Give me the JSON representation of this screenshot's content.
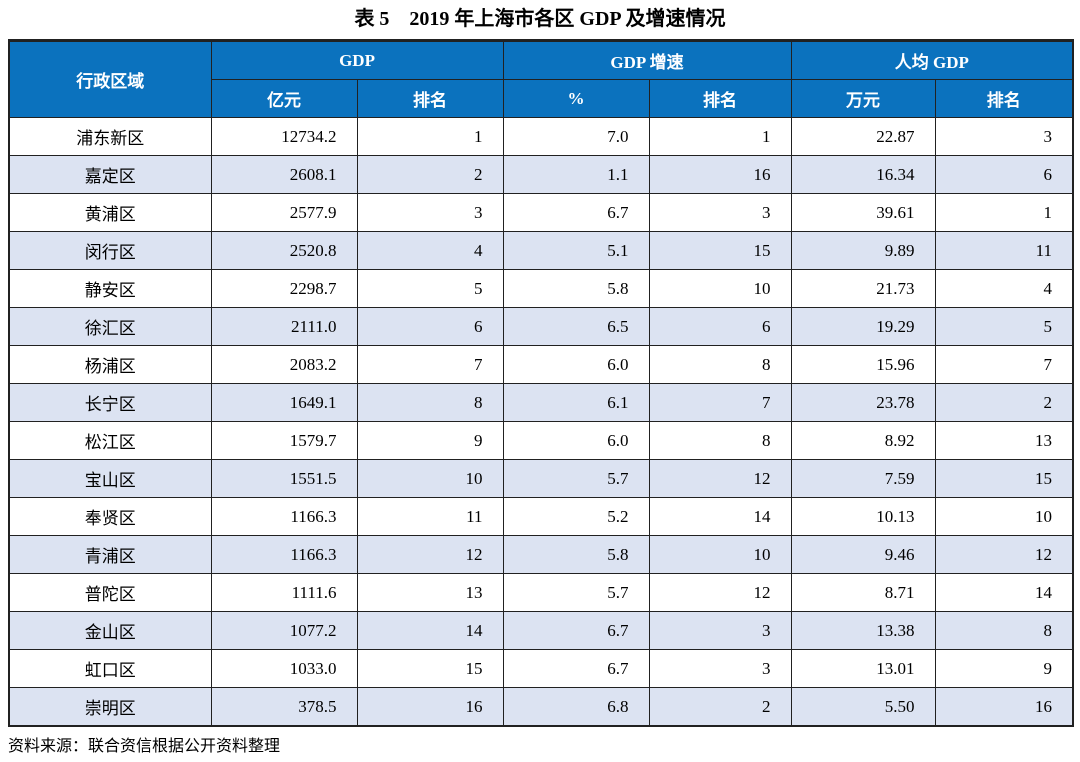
{
  "page": {
    "title": "表 5　2019 年上海市各区 GDP 及增速情况",
    "source_note": "资料来源：联合资信根据公开资料整理"
  },
  "colors": {
    "header_bg": "#0b72be",
    "header_text": "#ffffff",
    "alt_row_bg": "#dce3f2",
    "border": "#212121"
  },
  "table": {
    "header": {
      "region": "行政区域",
      "groups": [
        {
          "label": "GDP",
          "subs": [
            "亿元",
            "排名"
          ]
        },
        {
          "label": "GDP 增速",
          "subs": [
            "%",
            "排名"
          ]
        },
        {
          "label": "人均 GDP",
          "subs": [
            "万元",
            "排名"
          ]
        }
      ]
    },
    "rows": [
      [
        "浦东新区",
        "12734.2",
        "1",
        "7.0",
        "1",
        "22.87",
        "3"
      ],
      [
        "嘉定区",
        "2608.1",
        "2",
        "1.1",
        "16",
        "16.34",
        "6"
      ],
      [
        "黄浦区",
        "2577.9",
        "3",
        "6.7",
        "3",
        "39.61",
        "1"
      ],
      [
        "闵行区",
        "2520.8",
        "4",
        "5.1",
        "15",
        "9.89",
        "11"
      ],
      [
        "静安区",
        "2298.7",
        "5",
        "5.8",
        "10",
        "21.73",
        "4"
      ],
      [
        "徐汇区",
        "2111.0",
        "6",
        "6.5",
        "6",
        "19.29",
        "5"
      ],
      [
        "杨浦区",
        "2083.2",
        "7",
        "6.0",
        "8",
        "15.96",
        "7"
      ],
      [
        "长宁区",
        "1649.1",
        "8",
        "6.1",
        "7",
        "23.78",
        "2"
      ],
      [
        "松江区",
        "1579.7",
        "9",
        "6.0",
        "8",
        "8.92",
        "13"
      ],
      [
        "宝山区",
        "1551.5",
        "10",
        "5.7",
        "12",
        "7.59",
        "15"
      ],
      [
        "奉贤区",
        "1166.3",
        "11",
        "5.2",
        "14",
        "10.13",
        "10"
      ],
      [
        "青浦区",
        "1166.3",
        "12",
        "5.8",
        "10",
        "9.46",
        "12"
      ],
      [
        "普陀区",
        "1111.6",
        "13",
        "5.7",
        "12",
        "8.71",
        "14"
      ],
      [
        "金山区",
        "1077.2",
        "14",
        "6.7",
        "3",
        "13.38",
        "8"
      ],
      [
        "虹口区",
        "1033.0",
        "15",
        "6.7",
        "3",
        "13.01",
        "9"
      ],
      [
        "崇明区",
        "378.5",
        "16",
        "6.8",
        "2",
        "5.50",
        "16"
      ]
    ]
  }
}
